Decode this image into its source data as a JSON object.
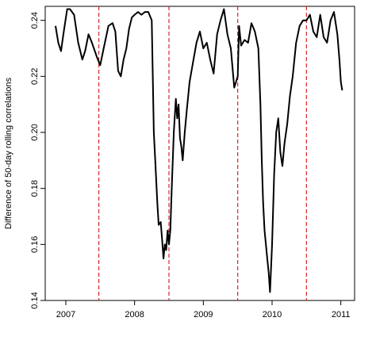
{
  "chart_data": {
    "type": "line",
    "ylabel": "Difference of 50-day rolling correlations",
    "xlabel": "",
    "title": "",
    "xlim": [
      2006.7,
      2011.2
    ],
    "ylim": [
      0.14,
      0.245
    ],
    "x_ticks": [
      {
        "value": 2007.0,
        "label": "2007"
      },
      {
        "value": 2008.0,
        "label": "2008"
      },
      {
        "value": 2009.0,
        "label": "2009"
      },
      {
        "value": 2010.0,
        "label": "2010"
      },
      {
        "value": 2011.0,
        "label": "2011"
      }
    ],
    "y_ticks": [
      {
        "value": 0.14,
        "label": "0.14"
      },
      {
        "value": 0.16,
        "label": "0.16"
      },
      {
        "value": 0.18,
        "label": "0.18"
      },
      {
        "value": 0.2,
        "label": "0.20"
      },
      {
        "value": 0.22,
        "label": "0.22"
      },
      {
        "value": 0.24,
        "label": "0.24"
      }
    ],
    "vlines": [
      2007.48,
      2008.5,
      2009.5,
      2010.5
    ],
    "vline_color": "#d62728",
    "line_color": "#000000",
    "series": [
      {
        "x": [
          2006.85,
          2006.89,
          2006.93,
          2006.97,
          2007.02,
          2007.06,
          2007.12,
          2007.18,
          2007.24,
          2007.28,
          2007.33,
          2007.38,
          2007.45,
          2007.5,
          2007.55,
          2007.62,
          2007.68,
          2007.72,
          2007.76,
          2007.8,
          2007.84,
          2007.88,
          2007.92,
          2007.96,
          2008.0,
          2008.05,
          2008.1,
          2008.15,
          2008.2,
          2008.25,
          2008.28,
          2008.3,
          2008.33,
          2008.35,
          2008.38,
          2008.4,
          2008.42,
          2008.44,
          2008.46,
          2008.48,
          2008.5,
          2008.52,
          2008.54,
          2008.57,
          2008.6,
          2008.62,
          2008.64,
          2008.66,
          2008.68,
          2008.7,
          2008.73,
          2008.76,
          2008.8,
          2008.85,
          2008.9,
          2008.95,
          2009.0,
          2009.05,
          2009.1,
          2009.15,
          2009.2,
          2009.25,
          2009.3,
          2009.35,
          2009.4,
          2009.45,
          2009.5,
          2009.52,
          2009.55,
          2009.6,
          2009.65,
          2009.7,
          2009.75,
          2009.8,
          2009.83,
          2009.85,
          2009.87,
          2009.89,
          2009.91,
          2009.93,
          2009.95,
          2009.97,
          2010.0,
          2010.03,
          2010.06,
          2010.09,
          2010.12,
          2010.15,
          2010.18,
          2010.22,
          2010.26,
          2010.3,
          2010.35,
          2010.4,
          2010.45,
          2010.5,
          2010.55,
          2010.6,
          2010.65,
          2010.7,
          2010.75,
          2010.8,
          2010.85,
          2010.9,
          2010.95,
          2010.98,
          2011.0,
          2011.02
        ],
        "y": [
          0.238,
          0.232,
          0.229,
          0.236,
          0.244,
          0.244,
          0.242,
          0.232,
          0.226,
          0.229,
          0.235,
          0.232,
          0.227,
          0.224,
          0.23,
          0.238,
          0.239,
          0.236,
          0.222,
          0.22,
          0.226,
          0.23,
          0.237,
          0.241,
          0.242,
          0.243,
          0.242,
          0.243,
          0.243,
          0.24,
          0.2,
          0.19,
          0.175,
          0.167,
          0.168,
          0.162,
          0.155,
          0.16,
          0.158,
          0.165,
          0.16,
          0.165,
          0.18,
          0.2,
          0.212,
          0.205,
          0.21,
          0.198,
          0.195,
          0.19,
          0.2,
          0.208,
          0.218,
          0.225,
          0.232,
          0.236,
          0.23,
          0.232,
          0.226,
          0.221,
          0.235,
          0.24,
          0.244,
          0.235,
          0.23,
          0.216,
          0.22,
          0.238,
          0.231,
          0.233,
          0.232,
          0.239,
          0.236,
          0.23,
          0.21,
          0.19,
          0.175,
          0.165,
          0.16,
          0.155,
          0.15,
          0.143,
          0.16,
          0.185,
          0.2,
          0.205,
          0.193,
          0.188,
          0.196,
          0.203,
          0.213,
          0.22,
          0.232,
          0.238,
          0.24,
          0.24,
          0.242,
          0.236,
          0.234,
          0.242,
          0.234,
          0.232,
          0.24,
          0.243,
          0.235,
          0.226,
          0.218,
          0.215
        ]
      }
    ]
  }
}
